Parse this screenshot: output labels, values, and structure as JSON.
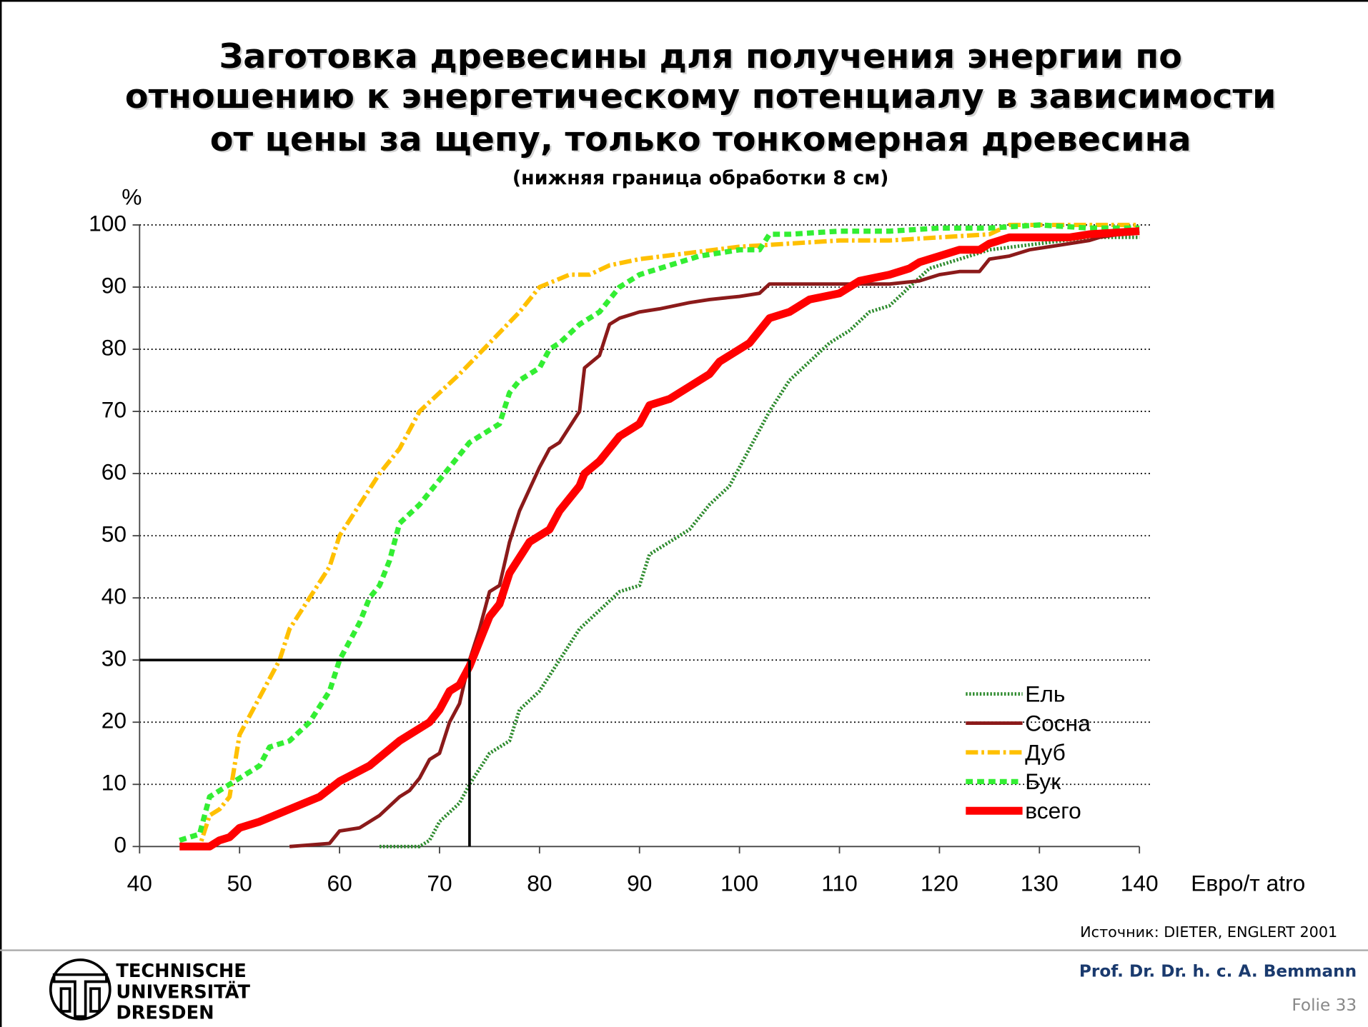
{
  "chart_data": {
    "type": "line",
    "title": [
      "Заготовка древесины для получения энергии по",
      "отношению к энергетическому потенциалу в зависимости",
      "от цены за щепу, только тонкомерная древесина"
    ],
    "subtitle": "(нижняя граница обработки 8 см)",
    "y_label": "%",
    "x_label": "Евро/т atro",
    "source": "Источник: DIETER, ENGLERT 2001",
    "xlim": [
      40,
      140
    ],
    "xticks": [
      40,
      50,
      60,
      70,
      80,
      90,
      100,
      110,
      120,
      130,
      140
    ],
    "ylim": [
      0,
      100
    ],
    "yticks": [
      0,
      10,
      20,
      30,
      40,
      50,
      60,
      70,
      80,
      90,
      100
    ],
    "grid": true,
    "legend": "lower right",
    "reference": {
      "x": 73,
      "y": 30
    },
    "series": [
      {
        "name": "Ель",
        "color": "#2e8b2e",
        "linestyle": "dotted",
        "linewidth": 4,
        "x": [
          64,
          68,
          69,
          70,
          72,
          73,
          75,
          77,
          78,
          80,
          82,
          84,
          86,
          88,
          90,
          91,
          93,
          95,
          97,
          99,
          101,
          103,
          105,
          107,
          109,
          111,
          113,
          115,
          117,
          119,
          121,
          125,
          130,
          135,
          140
        ],
        "values": [
          0,
          0,
          1,
          4,
          7,
          10,
          15,
          17,
          22,
          25,
          30,
          35,
          38,
          41,
          42,
          47,
          49,
          51,
          55,
          58,
          64,
          70,
          75,
          78,
          81,
          83,
          86,
          87,
          90,
          93,
          94,
          96,
          97,
          98,
          98
        ]
      },
      {
        "name": "Сосна",
        "color": "#8b1a1a",
        "linestyle": "solid",
        "linewidth": 4,
        "x": [
          55,
          59,
          60,
          62,
          64,
          66,
          67,
          68,
          69,
          70,
          71,
          72,
          73,
          74,
          75,
          76,
          77,
          78,
          80,
          81,
          82,
          84,
          84.5,
          86,
          87,
          88,
          90,
          92,
          95,
          97,
          100,
          102,
          103,
          105,
          110,
          115,
          118,
          120,
          122,
          124,
          125,
          127,
          129,
          131,
          133,
          135,
          136,
          140
        ],
        "values": [
          0,
          0.5,
          2.5,
          3,
          5,
          8,
          9,
          11,
          14,
          15,
          20,
          23,
          30,
          35,
          41,
          42,
          49,
          54,
          61,
          64,
          65,
          70,
          77,
          79,
          84,
          85,
          86,
          86.5,
          87.5,
          88,
          88.5,
          89,
          90.5,
          90.5,
          90.5,
          90.5,
          91,
          92,
          92.5,
          92.5,
          94.5,
          95,
          96,
          96.5,
          97,
          97.5,
          98,
          99
        ]
      },
      {
        "name": "Дуб",
        "color": "#ffc000",
        "linestyle": "dashdot",
        "linewidth": 5,
        "x": [
          45,
          46,
          47,
          48,
          49,
          50,
          52,
          54,
          55,
          57,
          59,
          60,
          62,
          64,
          66,
          68,
          70,
          72,
          75,
          78,
          80,
          83,
          85,
          87,
          90,
          95,
          100,
          105,
          110,
          115,
          120,
          125,
          127,
          130,
          135,
          140
        ],
        "values": [
          0,
          0,
          5,
          6,
          8,
          18,
          24,
          30,
          35,
          40,
          45,
          50,
          55,
          60,
          64,
          70,
          73,
          76,
          81,
          86,
          90,
          92,
          92,
          93.5,
          94.5,
          95.5,
          96.5,
          97,
          97.5,
          97.5,
          98,
          98.5,
          100,
          100,
          100,
          100
        ]
      },
      {
        "name": "Бук",
        "color": "#33ee33",
        "linestyle": "dashed",
        "linewidth": 6,
        "x": [
          44,
          46,
          47,
          48,
          50,
          52,
          53,
          55,
          57,
          59,
          60,
          61,
          62,
          63,
          64,
          65,
          66,
          68,
          70,
          72,
          73,
          75,
          76,
          77,
          78,
          80,
          81,
          82,
          84,
          86,
          88,
          90,
          92,
          94,
          96,
          100,
          102,
          103,
          105,
          110,
          115,
          120,
          125,
          130,
          135,
          140
        ],
        "values": [
          1,
          2,
          8,
          9,
          11,
          13,
          16,
          17,
          20,
          25,
          30,
          33,
          36,
          40,
          42,
          46,
          52,
          55,
          59,
          63,
          65,
          67,
          68,
          73,
          75,
          77,
          80,
          81,
          84,
          86,
          90,
          92,
          93,
          94,
          95,
          96,
          96,
          98.5,
          98.5,
          99,
          99,
          99.5,
          99.5,
          100,
          99.5,
          99.5
        ]
      },
      {
        "name": "всего",
        "color": "#ff0000",
        "linestyle": "solid",
        "linewidth": 9,
        "x": [
          44,
          47,
          48,
          49,
          50,
          52,
          55,
          58,
          60,
          63,
          66,
          69,
          70,
          71,
          72,
          73,
          74,
          75,
          76,
          77,
          79,
          81,
          82,
          84,
          84.5,
          86,
          87,
          88,
          89,
          90,
          91,
          93,
          95,
          97,
          98,
          99,
          101,
          103,
          105,
          107,
          110,
          112,
          115,
          117,
          118,
          120,
          122,
          124,
          125,
          127,
          130,
          133,
          135,
          140
        ],
        "values": [
          0,
          0,
          1,
          1.5,
          3,
          4,
          6,
          8,
          10.5,
          13,
          17,
          20,
          22,
          25,
          26,
          29,
          33,
          37,
          39,
          44,
          49,
          51,
          54,
          58,
          60,
          62,
          64,
          66,
          67,
          68,
          71,
          72,
          74,
          76,
          78,
          79,
          81,
          85,
          86,
          88,
          89,
          91,
          92,
          93,
          94,
          95,
          96,
          96,
          97,
          98,
          98,
          98,
          98.5,
          99
        ]
      }
    ]
  },
  "footer": {
    "author": "Prof. Dr. Dr. h. c. A. Bemmann",
    "slide": "Folie 33",
    "logo": [
      "TECHNISCHE",
      "UNIVERSITÄT",
      "DRESDEN"
    ]
  }
}
